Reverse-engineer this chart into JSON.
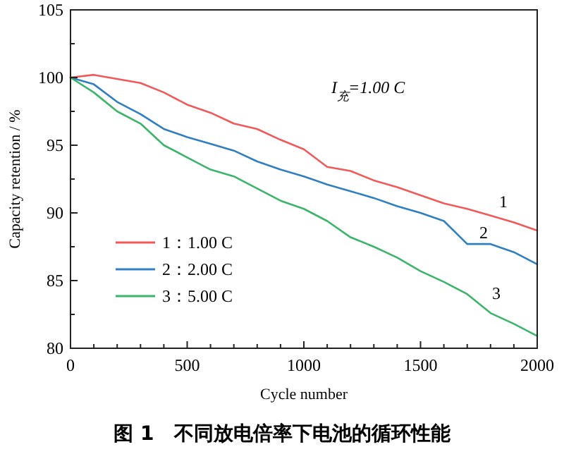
{
  "chart_data": {
    "type": "line",
    "title": "图 1　不同放电倍率下电池的循环性能",
    "xlabel": "Cycle number",
    "ylabel": "Capacity retention / %",
    "x": [
      0,
      100,
      200,
      300,
      400,
      500,
      600,
      700,
      800,
      900,
      1000,
      1100,
      1200,
      1300,
      1400,
      1500,
      1600,
      1700,
      1800,
      1900,
      2000
    ],
    "series": [
      {
        "name": "1：1.00 C",
        "color": "#f05a5a",
        "values": [
          100,
          100.2,
          99.9,
          99.6,
          98.9,
          98,
          97.4,
          96.6,
          96.2,
          95.4,
          94.7,
          93.4,
          93.1,
          92.4,
          91.9,
          91.3,
          90.7,
          90.3,
          89.8,
          89.3,
          88.7
        ]
      },
      {
        "name": "2：2.00 C",
        "color": "#2f7fc1",
        "values": [
          100,
          99.5,
          98.2,
          97.3,
          96.2,
          95.6,
          95.1,
          94.6,
          93.8,
          93.2,
          92.7,
          92.1,
          91.6,
          91.1,
          90.5,
          90,
          89.4,
          87.7,
          87.7,
          87.1,
          86.2
        ]
      },
      {
        "name": "3：5.00 C",
        "color": "#3cb56a",
        "values": [
          100,
          98.9,
          97.5,
          96.6,
          95,
          94.1,
          93.2,
          92.7,
          91.8,
          90.9,
          90.3,
          89.4,
          88.2,
          87.5,
          86.7,
          85.7,
          84.9,
          84,
          82.6,
          81.8,
          80.9
        ]
      }
    ],
    "xlim": [
      0,
      2000
    ],
    "ylim": [
      80,
      105
    ],
    "xticks": [
      0,
      {
        "value": 100,
        "label": null
      },
      {
        "value": 200,
        "label": null
      },
      {
        "value": 300,
        "label": null
      },
      {
        "value": 400,
        "label": null
      },
      500,
      {
        "value": 600,
        "label": null
      },
      {
        "value": 700,
        "label": null
      },
      {
        "value": 800,
        "label": null
      },
      {
        "value": 900,
        "label": null
      },
      1000,
      {
        "value": 1100,
        "label": null
      },
      {
        "value": 1200,
        "label": null
      },
      {
        "value": 1300,
        "label": null
      },
      {
        "value": 1400,
        "label": null
      },
      1500,
      {
        "value": 1600,
        "label": null
      },
      {
        "value": 1700,
        "label": null
      },
      {
        "value": 1800,
        "label": null
      },
      {
        "value": 1900,
        "label": null
      },
      2000
    ],
    "yticks": [
      80,
      {
        "value": 82.5,
        "label": null
      },
      85,
      {
        "value": 87.5,
        "label": null
      },
      90,
      {
        "value": 92.5,
        "label": null
      },
      95,
      {
        "value": 97.5,
        "label": null
      },
      100,
      {
        "value": 102.5,
        "label": null
      },
      105
    ],
    "annotations": [
      "I$_{充}$=1.00 C",
      "1",
      "2",
      "3"
    ],
    "legend": "bottom left",
    "grid": false,
    "marker": "none",
    "line_style": "solid"
  }
}
